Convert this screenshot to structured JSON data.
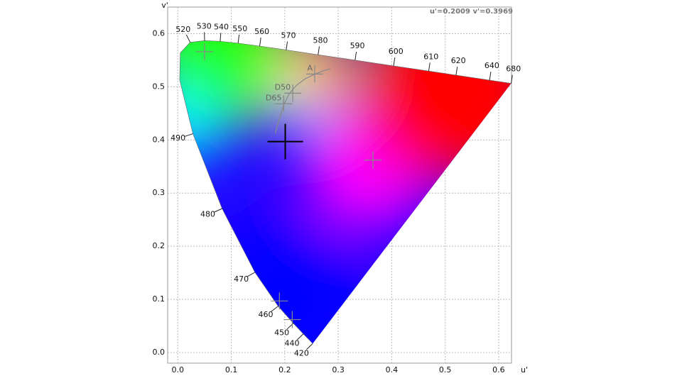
{
  "chart_data": {
    "type": "chromaticity",
    "readout": "u'=0.2009 v'=0.3969",
    "x_label": "u'",
    "y_label": "v'",
    "xlim": [
      -0.019,
      0.624
    ],
    "ylim": [
      -0.02,
      0.65
    ],
    "xticks": [
      {
        "value": 0,
        "label": "0.0"
      },
      0.1,
      0.2,
      0.3,
      0.4,
      0.5,
      0.6
    ],
    "yticks": [
      {
        "value": 0,
        "label": "0.0"
      },
      0.1,
      0.2,
      0.3,
      0.4,
      0.5,
      0.6
    ],
    "grid": true,
    "locus": {
      "labels": [
        "420",
        "440",
        "450",
        "460",
        "470",
        "480",
        "490",
        null,
        null,
        "520",
        "530",
        "540",
        "550",
        "560",
        "570",
        "580",
        "590",
        "600",
        "610",
        "620",
        "640",
        "680"
      ],
      "x": [
        0.2522,
        0.2347,
        0.2161,
        0.1877,
        0.1441,
        0.0828,
        0.0282,
        0.0035,
        0.0046,
        0.0231,
        0.0501,
        0.0792,
        0.1127,
        0.1531,
        0.2026,
        0.2623,
        0.3315,
        0.4035,
        0.4692,
        0.5203,
        0.583,
        0.6234
      ],
      "y": [
        0.0169,
        0.035,
        0.0549,
        0.0871,
        0.151,
        0.2708,
        0.4117,
        0.513,
        0.5638,
        0.5837,
        0.5868,
        0.5856,
        0.5821,
        0.5766,
        0.5694,
        0.5604,
        0.5501,
        0.5393,
        0.5296,
        0.5219,
        0.5125,
        0.5065
      ]
    },
    "planckian": {
      "color": "#888888",
      "x": [
        0.182,
        0.19,
        0.198,
        0.209,
        0.222,
        0.238,
        0.256,
        0.272,
        0.285
      ],
      "y": [
        0.412,
        0.44,
        0.466,
        0.488,
        0.503,
        0.515,
        0.524,
        0.53,
        0.534
      ]
    },
    "markers": {
      "color": "#888888",
      "labels": [
        null,
        "A",
        "D50",
        "D65",
        null,
        null,
        null
      ],
      "x": [
        0.05,
        0.256,
        0.215,
        0.198,
        0.365,
        0.19,
        0.214
      ],
      "y": [
        0.566,
        0.524,
        0.488,
        0.468,
        0.362,
        0.097,
        0.062
      ]
    },
    "cursor": {
      "x": 0.2009,
      "y": 0.3969,
      "color": "#000000"
    }
  }
}
